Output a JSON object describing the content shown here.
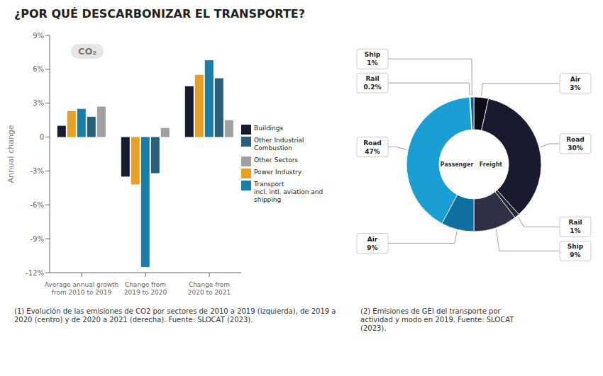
{
  "title": "¿POR QUÉ DESCARBONIZAR EL TRANSPORTE?",
  "chart_data": [
    {
      "type": "bar",
      "categories": [
        "Average annual growth\nfrom 2010 to 2019",
        "Change from\n2019 to 2020",
        "Change from\n2020 to 2021"
      ],
      "series": [
        {
          "name": "Buildings",
          "color": "#1a1a2e",
          "values": [
            1.0,
            -3.5,
            4.5
          ]
        },
        {
          "name": "Power Industry",
          "color": "#e8a020",
          "values": [
            2.3,
            -4.2,
            5.5
          ]
        },
        {
          "name": "Transport\nincl. intl. aviation and shipping",
          "color": "#1a7fa8",
          "values": [
            2.5,
            -11.5,
            6.8
          ]
        },
        {
          "name": "Other Industrial\nCombustion",
          "color": "#2a5f7a",
          "values": [
            1.8,
            -3.2,
            5.2
          ]
        },
        {
          "name": "Other Sectors",
          "color": "#a0a0a0",
          "values": [
            2.7,
            0.8,
            1.5
          ]
        }
      ],
      "ylabel": "Annual change",
      "ylim": [
        -12,
        9
      ],
      "yticks": [
        {
          "value": 9,
          "label": "9%"
        },
        {
          "value": 6,
          "label": "6%"
        },
        {
          "value": 3,
          "label": "3%"
        },
        0,
        {
          "value": -3,
          "label": "-3%"
        },
        {
          "value": -6,
          "label": "-6%"
        },
        {
          "value": -9,
          "label": "-9%"
        },
        {
          "value": -12,
          "label": "-12%"
        }
      ],
      "grid": false,
      "legend": "right",
      "annotations": [
        "CO₂"
      ],
      "footnote": "(1) Evolución de las emisiones de CO2 por sectores de 2010 a 2019 (izquierda), de 2019 a\n2020 (centro) y de 2020 a 2021 (derecha). Fuente: SLOCAT (2023)."
    },
    {
      "type": "pie",
      "series": [
        {
          "name": "Freight",
          "categories": [
            "Air",
            "Road",
            "Rail",
            "Ship"
          ],
          "values": [
            3,
            30,
            1,
            9
          ],
          "value_labels": [
            "3%",
            "30%",
            "1%",
            "9%"
          ],
          "colors": [
            "#0d0d1a",
            "#1a1a2e",
            "#252535",
            "#303045"
          ]
        },
        {
          "name": "Passenger",
          "categories": [
            "Ship",
            "Rail",
            "Road",
            "Air"
          ],
          "values": [
            1,
            0.2,
            47,
            9
          ],
          "value_labels": [
            "1%",
            "0.2%",
            "47%",
            "9%"
          ],
          "colors": [
            "#1a5f8a",
            "#1a7fa8",
            "#1a9fd4",
            "#0e6fa0"
          ]
        }
      ],
      "data_labels": true,
      "footnote": "(2) Emisiones de GEI del transporte por\nactividad y modo en 2019. Fuente: SLOCAT\n(2023)."
    }
  ]
}
